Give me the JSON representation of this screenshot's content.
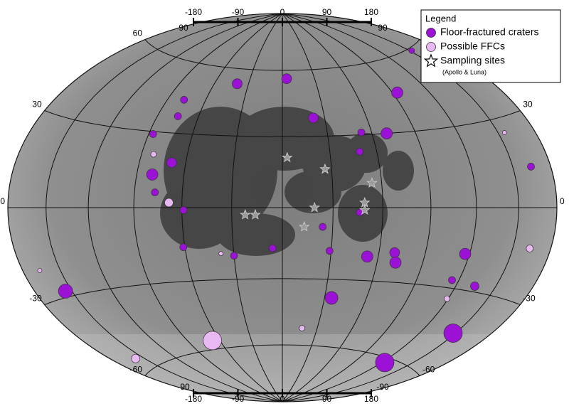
{
  "map": {
    "type": "map",
    "projection": "hammer",
    "parallels": [
      -60,
      -30,
      0,
      30,
      60
    ],
    "meridians": [
      -150,
      -120,
      -90,
      -60,
      -30,
      0,
      30,
      60,
      90,
      120,
      150
    ],
    "left_labels": [
      60,
      30,
      0,
      -30,
      -60
    ],
    "right_labels": [
      30,
      0,
      -30,
      -60
    ],
    "top_scale": {
      "ticks": [
        -180,
        -90,
        0,
        90,
        180
      ],
      "end_label": 90
    },
    "bottom_scale": {
      "ticks": [
        -180,
        -90,
        0,
        90,
        180
      ],
      "end_label": -90
    },
    "legend": {
      "title": "Legend",
      "note": "(Apollo & Luna)"
    },
    "series": [
      {
        "name": "Floor-fractured craters",
        "marker": "circle",
        "color": "#9b12d6",
        "lon": [
          4,
          -40,
          94,
          22,
          70,
          -87,
          -69,
          -80,
          -155,
          35,
          123,
          148,
          117,
          70,
          72,
          53,
          134,
          -61,
          -6,
          29,
          -77,
          -75,
          53,
          49,
          164,
          115,
          152,
          -30,
          24,
          -77,
          -59,
          46
        ],
        "lat": [
          56,
          53,
          46,
          38,
          30,
          29,
          18,
          13,
          -28,
          -38,
          -62,
          -45,
          -17,
          -18,
          -22,
          -20,
          -28,
          -16,
          -17,
          -18,
          44,
          37,
          31,
          23,
          13,
          -27,
          59,
          -20,
          -8,
          6,
          -1,
          -2
        ],
        "sizes": [
          7,
          7,
          8,
          7,
          8,
          5,
          7,
          8,
          10,
          9,
          13,
          13,
          8,
          7,
          8,
          8,
          6,
          5,
          5,
          5,
          5,
          5,
          5,
          5,
          5,
          5,
          4,
          5,
          5,
          5,
          5,
          5
        ]
      },
      {
        "name": "Possible FFCs",
        "marker": "circle",
        "color": "#e8b8f2",
        "lon": [
          -67,
          -158,
          -68,
          163,
          -166,
          17,
          -82,
          155,
          119,
          -38
        ],
        "lat": [
          -56,
          -55,
          2,
          -13,
          -20,
          -52,
          21,
          25,
          -34,
          -19
        ],
        "sizes": [
          13,
          6,
          6,
          5,
          3,
          4,
          4,
          3,
          4,
          3
        ]
      },
      {
        "name": "Sampling sites",
        "marker": "star",
        "color": "#9a9a9a",
        "lon": [
          3,
          26,
          54,
          49,
          49,
          19,
          -22,
          -16,
          13
        ],
        "lat": [
          21,
          16,
          10,
          2,
          -1,
          0,
          -3,
          -3,
          -8
        ]
      }
    ]
  }
}
